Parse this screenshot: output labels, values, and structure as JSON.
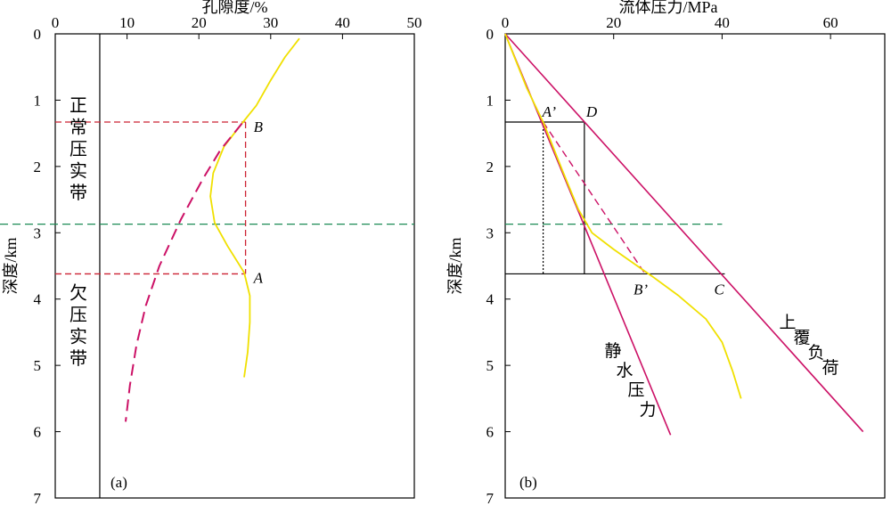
{
  "chart_data": [
    {
      "type": "line",
      "panel_label": "(a)",
      "x_axis": {
        "title": "孔隙度/%",
        "position": "top",
        "range": [
          0,
          50
        ],
        "ticks": [
          "0",
          "10",
          "20",
          "30",
          "40",
          "50"
        ]
      },
      "y_axis": {
        "title": "深度/km",
        "range": [
          0,
          7
        ],
        "inverted": true,
        "ticks": [
          "0",
          "1",
          "2",
          "3",
          "4",
          "5",
          "6",
          "7"
        ]
      },
      "series": [
        {
          "style": "solid",
          "color": "#f0e000",
          "points": [
            [
              34,
              0.07
            ],
            [
              32,
              0.35
            ],
            [
              30,
              0.7
            ],
            [
              28,
              1.08
            ],
            [
              26,
              1.35
            ],
            [
              23.5,
              1.7
            ],
            [
              22,
              2.1
            ],
            [
              21.6,
              2.45
            ],
            [
              22.2,
              2.85
            ],
            [
              24,
              3.2
            ],
            [
              26.3,
              3.6
            ],
            [
              27.1,
              3.95
            ],
            [
              27.1,
              4.35
            ],
            [
              26.8,
              4.8
            ],
            [
              26.3,
              5.18
            ]
          ]
        },
        {
          "style": "dashed",
          "color": "#cc1166",
          "points": [
            [
              26,
              1.35
            ],
            [
              23,
              1.75
            ],
            [
              20.5,
              2.2
            ],
            [
              17.5,
              2.8
            ],
            [
              14.5,
              3.5
            ],
            [
              12.6,
              4.1
            ],
            [
              11.3,
              4.7
            ],
            [
              10.4,
              5.3
            ],
            [
              9.8,
              5.85
            ]
          ]
        }
      ],
      "guides": [
        {
          "label": "B",
          "depth": 1.33,
          "x": 26.5
        },
        {
          "label": "A",
          "depth": 3.62,
          "x": 26.5
        }
      ],
      "boundary_line_x": 6.2,
      "transition_depth": 2.87,
      "zones": [
        {
          "label": [
            "正",
            "常",
            "压",
            "实",
            "带"
          ]
        },
        {
          "label": [
            "欠",
            "压",
            "实",
            "带"
          ]
        }
      ]
    },
    {
      "type": "line",
      "panel_label": "(b)",
      "x_axis": {
        "title": "流体压力/MPa",
        "position": "top",
        "range": [
          0,
          70
        ],
        "ticks": [
          "0",
          "20",
          "40",
          "60"
        ]
      },
      "y_axis": {
        "title": "深度/km",
        "range": [
          0,
          7
        ],
        "inverted": true,
        "ticks": [
          "0",
          "1",
          "2",
          "3",
          "4",
          "5",
          "6",
          "7"
        ]
      },
      "lines": [
        {
          "label": [
            "静",
            "水",
            "压",
            "力"
          ],
          "from": [
            0,
            0
          ],
          "to": [
            30.5,
            6.05
          ],
          "color": "#cc1166"
        },
        {
          "label": [
            "上",
            "覆",
            "负",
            "荷"
          ],
          "from": [
            0,
            0
          ],
          "to": [
            66,
            6.0
          ],
          "color": "#cc1166"
        }
      ],
      "fluid_pressure_curve": {
        "color": "#f0e000",
        "points": [
          [
            0,
            0
          ],
          [
            4,
            0.82
          ],
          [
            7,
            1.33
          ],
          [
            10.5,
            2.05
          ],
          [
            13.5,
            2.65
          ],
          [
            16,
            3.0
          ],
          [
            20,
            3.25
          ],
          [
            24,
            3.48
          ],
          [
            27,
            3.65
          ],
          [
            32,
            3.95
          ],
          [
            37,
            4.3
          ],
          [
            40,
            4.65
          ],
          [
            42,
            5.1
          ],
          [
            43.5,
            5.5
          ]
        ]
      },
      "dashed_path": {
        "from": [
          7,
          1.33
        ],
        "to": [
          25.8,
          3.62
        ],
        "color": "#cc1166"
      },
      "points": [
        {
          "label": "A’",
          "x": 7,
          "depth": 1.33
        },
        {
          "label": "D",
          "x": 14.6,
          "depth": 1.33
        },
        {
          "label": "B’",
          "x": 25.8,
          "depth": 3.62
        },
        {
          "label": "C",
          "x": 40.5,
          "depth": 3.62
        }
      ],
      "transition_depth": 2.87,
      "transition_x_end": 40
    }
  ]
}
